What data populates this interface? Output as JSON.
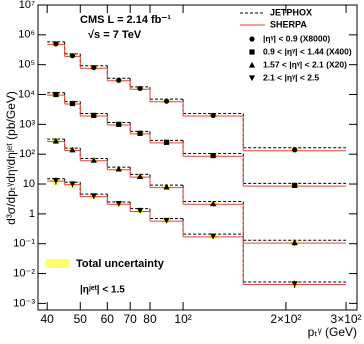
{
  "chart_data": {
    "type": "histogram",
    "header": "CMS  L = 2.14 fb⁻¹",
    "subtitle": "√s = 7 TeV",
    "annotation": "|ηʲᵉᵗ| < 1.5",
    "band_label": "Total uncertainty",
    "band_color": "#ffff66",
    "x_label": "pₜᵞ (GeV)",
    "y_label": "d³σ/dpₜᵞdηᵞdηʲᵉᵗ (pb/GeV)",
    "log_x": true,
    "log_y": true,
    "bins": [
      40,
      45,
      50,
      60,
      70,
      80,
      100,
      150,
      300
    ],
    "xlim": [
      37.6,
      323
    ],
    "ylim": [
      0.0006,
      10000000
    ],
    "xticks": [
      40,
      50,
      60,
      70,
      80,
      {
        "value": 100,
        "label": "10²"
      },
      {
        "value": 200,
        "label": "2×10²"
      },
      {
        "value": 300,
        "label": "3×10²"
      }
    ],
    "yticks": [
      {
        "value": 0.001,
        "label": "10⁻³"
      },
      {
        "value": 0.01,
        "label": "10⁻²"
      },
      {
        "value": 0.1,
        "label": "10⁻¹"
      },
      1,
      10,
      {
        "value": 100,
        "label": "10²"
      },
      {
        "value": 1000,
        "label": "10³"
      },
      {
        "value": 10000,
        "label": "10⁴"
      },
      {
        "value": 100000,
        "label": "10⁵"
      },
      {
        "value": 1000000,
        "label": "10⁶"
      },
      {
        "value": 10000000,
        "label": "10⁷"
      }
    ],
    "curves": [
      {
        "name": "JETPHOX",
        "color": "#000000",
        "dashed": true,
        "values": [
          [
            580000,
            230000,
            92000,
            35000,
            18000,
            7000,
            2300,
            165
          ],
          [
            11500,
            5800,
            2300,
            1150,
            580,
            290,
            105,
            10.5
          ],
          [
            320,
            160,
            72,
            37,
            21,
            9.2,
            2.6,
            0.13
          ],
          [
            15,
            11.5,
            4.6,
            2.5,
            1.5,
            0.7,
            0.21,
            0.0052
          ]
        ]
      },
      {
        "name": "SHERPA",
        "color": "#e8403a",
        "dashed": false,
        "values": [
          [
            480000,
            190000,
            76000,
            29000,
            15000,
            5700,
            1900,
            130
          ],
          [
            9500,
            4800,
            1900,
            950,
            480,
            240,
            85,
            8.5
          ],
          [
            265,
            133,
            60,
            30,
            17,
            7.6,
            2.1,
            0.105
          ],
          [
            12.5,
            9.5,
            3.8,
            2.1,
            1.2,
            0.57,
            0.17,
            0.0043
          ]
        ]
      }
    ],
    "series": [
      {
        "name": "|ηᵞ| < 0.9 (X8000)",
        "marker": "circle",
        "color": "#000000",
        "values": [
          500000,
          200000,
          80000,
          30000,
          16000,
          6000,
          2000,
          140
        ],
        "errors": [
          90000,
          30000,
          11000,
          4000,
          2000,
          800,
          260,
          25
        ]
      },
      {
        "name": "0.9 < |ηᵞ| < 1.44 (X400)",
        "marker": "square",
        "color": "#000000",
        "values": [
          10000,
          5000,
          2000,
          1000,
          500,
          250,
          90,
          9
        ],
        "errors": [
          1800,
          750,
          280,
          130,
          65,
          32,
          12,
          1.6
        ]
      },
      {
        "name": "1.57 < |ηᵞ| < 2.1 (X20)",
        "marker": "triangle-up",
        "color": "#000000",
        "values": [
          280,
          140,
          63,
          32,
          18,
          8,
          2.2,
          0.11
        ],
        "errors": [
          55,
          22,
          9,
          4.5,
          2.5,
          1.1,
          0.35,
          0.025
        ]
      },
      {
        "name": "2.1 < |ηᵞ| < 2.5",
        "marker": "triangle-down",
        "color": "#000000",
        "values": [
          13,
          10,
          4,
          2.2,
          1.3,
          0.6,
          0.18,
          0.0045
        ],
        "errors": [
          3.5,
          2.2,
          0.8,
          0.4,
          0.22,
          0.1,
          0.035,
          0.0012
        ]
      }
    ]
  }
}
